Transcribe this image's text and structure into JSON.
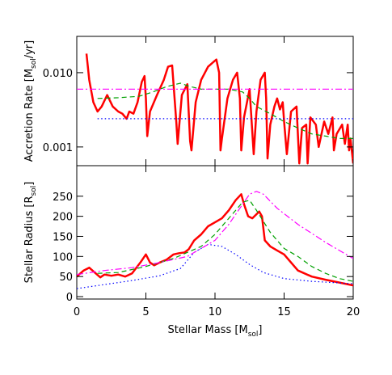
{
  "chart_data": [
    {
      "type": "line",
      "log_y": true,
      "ylabel": {
        "text": "Accretion Rate [M",
        "sub": "sol",
        "end": "/yr]"
      },
      "xlim": [
        0,
        20
      ],
      "xticks": [
        0,
        5,
        10,
        15,
        20
      ],
      "ylim": [
        0.00056,
        0.0308
      ],
      "yticks": [
        {
          "value": 0.001,
          "label": "0.001"
        },
        {
          "value": 0.01,
          "label": "0.010"
        }
      ],
      "series": [
        {
          "color": "#ff0000",
          "dash": "solid",
          "width": 2.5,
          "x": [
            0.7,
            0.9,
            1.2,
            1.5,
            1.8,
            2.2,
            2.6,
            3.0,
            3.3,
            3.6,
            3.8,
            4.1,
            4.4,
            4.7,
            4.9,
            5.0,
            5.1,
            5.3,
            5.8,
            6.3,
            6.6,
            6.9,
            7.2,
            7.3,
            7.6,
            8.0,
            8.2,
            8.3,
            8.6,
            9.0,
            9.5,
            9.9,
            10.1,
            10.3,
            10.4,
            10.5,
            10.9,
            11.3,
            11.6,
            11.8,
            11.9,
            12.1,
            12.5,
            12.8,
            13.0,
            13.3,
            13.6,
            13.7,
            13.8,
            14.0,
            14.3,
            14.5,
            14.7,
            14.9,
            15.0,
            15.2,
            15.5,
            15.9,
            16.1,
            16.3,
            16.6,
            16.7,
            16.9,
            17.3,
            17.5,
            17.9,
            18.2,
            18.5,
            18.6,
            18.8,
            19.2,
            19.4,
            19.6,
            19.7,
            19.8,
            20.0
          ],
          "values": [
            0.018,
            0.008,
            0.004,
            0.003,
            0.0035,
            0.005,
            0.0035,
            0.003,
            0.0028,
            0.0024,
            0.003,
            0.0028,
            0.004,
            0.0075,
            0.009,
            0.0045,
            0.0014,
            0.003,
            0.005,
            0.008,
            0.012,
            0.0125,
            0.0022,
            0.0011,
            0.005,
            0.007,
            0.0012,
            0.0009,
            0.004,
            0.008,
            0.012,
            0.014,
            0.015,
            0.01,
            0.0009,
            0.0013,
            0.0045,
            0.008,
            0.01,
            0.0045,
            0.0009,
            0.0025,
            0.006,
            0.0008,
            0.003,
            0.008,
            0.01,
            0.0045,
            0.0007,
            0.002,
            0.0035,
            0.0045,
            0.0032,
            0.004,
            0.0022,
            0.0008,
            0.003,
            0.0035,
            0.0006,
            0.0018,
            0.002,
            0.0006,
            0.0025,
            0.002,
            0.001,
            0.0022,
            0.0015,
            0.0025,
            0.0009,
            0.0015,
            0.002,
            0.0011,
            0.002,
            0.0009,
            0.0013,
            0.0006
          ]
        },
        {
          "color": "#00a000",
          "dash": "dashed",
          "width": 1.2,
          "x": [
            1.5,
            3,
            4.5,
            5.5,
            6.5,
            7.5,
            8.2,
            9,
            10,
            11,
            12,
            12.5,
            13,
            14,
            15,
            16,
            17,
            18,
            19,
            20
          ],
          "values": [
            0.0045,
            0.0046,
            0.0048,
            0.0055,
            0.0065,
            0.0072,
            0.0065,
            0.006,
            0.006,
            0.006,
            0.0055,
            0.0045,
            0.0035,
            0.0028,
            0.0022,
            0.0018,
            0.0015,
            0.0014,
            0.0013,
            0.0013
          ]
        },
        {
          "color": "#0000ff",
          "dash": "dotted",
          "width": 1.2,
          "x": [
            1.5,
            20
          ],
          "values": [
            0.0024,
            0.0024
          ]
        },
        {
          "color": "#ff00ff",
          "dash": "dashdot",
          "width": 1.2,
          "x": [
            0,
            20
          ],
          "values": [
            0.006,
            0.006
          ]
        }
      ]
    },
    {
      "type": "line",
      "log_y": false,
      "ylabel": {
        "text": "Stellar Radius [R",
        "sub": "sol",
        "end": "]"
      },
      "xlabel": {
        "text": "Stellar Mass [M",
        "sub": "sol",
        "end": "]"
      },
      "xlim": [
        0,
        20
      ],
      "xticks": [
        0,
        5,
        10,
        15,
        20
      ],
      "ylim": [
        -6,
        326
      ],
      "yticks": [
        0,
        50,
        100,
        150,
        200,
        250
      ],
      "series": [
        {
          "color": "#ff0000",
          "dash": "solid",
          "width": 2.5,
          "x": [
            0,
            0.5,
            0.9,
            1.3,
            1.7,
            2.0,
            2.5,
            3,
            3.5,
            4,
            4.6,
            5.0,
            5.3,
            5.6,
            6,
            6.5,
            7,
            7.4,
            7.8,
            8.1,
            8.5,
            9,
            9.5,
            10,
            10.5,
            11,
            11.5,
            11.9,
            12.1,
            12.4,
            12.7,
            13.0,
            13.2,
            13.4,
            13.6,
            14,
            14.5,
            15,
            15.5,
            16,
            17,
            18,
            19,
            20
          ],
          "values": [
            50,
            65,
            72,
            60,
            48,
            55,
            52,
            55,
            50,
            58,
            85,
            105,
            85,
            78,
            85,
            92,
            105,
            108,
            110,
            118,
            140,
            155,
            175,
            185,
            195,
            215,
            240,
            255,
            230,
            200,
            195,
            205,
            212,
            200,
            140,
            125,
            115,
            105,
            85,
            65,
            50,
            42,
            35,
            28
          ]
        },
        {
          "color": "#00a000",
          "dash": "dashed",
          "width": 1.2,
          "x": [
            1.5,
            3,
            5,
            7,
            8,
            9,
            10,
            11,
            12,
            12.5,
            13,
            14,
            15,
            16,
            17,
            18,
            19,
            20
          ],
          "values": [
            58,
            60,
            75,
            95,
            110,
            125,
            155,
            195,
            235,
            240,
            215,
            160,
            120,
            100,
            75,
            58,
            45,
            38
          ]
        },
        {
          "color": "#0000ff",
          "dash": "dotted",
          "width": 1.2,
          "x": [
            0,
            2,
            4,
            6,
            7.5,
            8.5,
            9.5,
            10.5,
            11.5,
            12.5,
            13.5,
            15,
            17,
            20
          ],
          "values": [
            20,
            30,
            40,
            52,
            70,
            110,
            130,
            125,
            105,
            80,
            60,
            45,
            38,
            32
          ]
        },
        {
          "color": "#ff00ff",
          "dash": "dashdot",
          "width": 1.2,
          "x": [
            0,
            2,
            4,
            6,
            8,
            10,
            11,
            12,
            12.5,
            13,
            13.5,
            14.5,
            16,
            18,
            19,
            20
          ],
          "values": [
            55,
            65,
            72,
            85,
            100,
            140,
            180,
            230,
            255,
            262,
            255,
            220,
            180,
            135,
            115,
            95
          ]
        }
      ]
    }
  ]
}
